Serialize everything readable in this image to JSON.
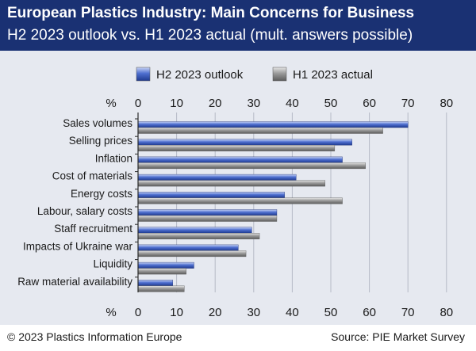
{
  "header": {
    "title": "European Plastics Industry: Main Concerns for Business",
    "subtitle": "H2 2023 outlook vs. H1 2023 actual (mult. answers possible)"
  },
  "footer": {
    "copyright": "© 2023 Plastics Information Europe",
    "source": "Source: PIE Market Survey"
  },
  "colors": {
    "title_band": "#1a3173",
    "panel_bg": "#e6e9f0",
    "h2_series": "#3f5fc4",
    "h1_series": "#8c8c8c"
  },
  "chart_data": {
    "type": "bar",
    "orientation": "horizontal",
    "unit_label": "%",
    "categories": [
      "Sales volumes",
      "Selling prices",
      "Inflation",
      "Cost of materials",
      "Energy costs",
      "Labour, salary costs",
      "Staff recruitment",
      "Impacts of Ukraine war",
      "Liquidity",
      "Raw material availability"
    ],
    "series": [
      {
        "name": "H2 2023 outlook",
        "values": [
          70,
          55.5,
          53,
          41,
          38,
          36,
          29.5,
          26,
          14.5,
          9
        ]
      },
      {
        "name": "H1 2023 actual",
        "values": [
          63.5,
          51,
          59,
          48.5,
          53,
          36,
          31.5,
          28,
          12.5,
          12
        ]
      }
    ],
    "xlim": [
      0,
      80
    ],
    "xticks": [
      0,
      10,
      20,
      30,
      40,
      50,
      60,
      70,
      80
    ],
    "grid": true,
    "legend_position": "top-center"
  }
}
